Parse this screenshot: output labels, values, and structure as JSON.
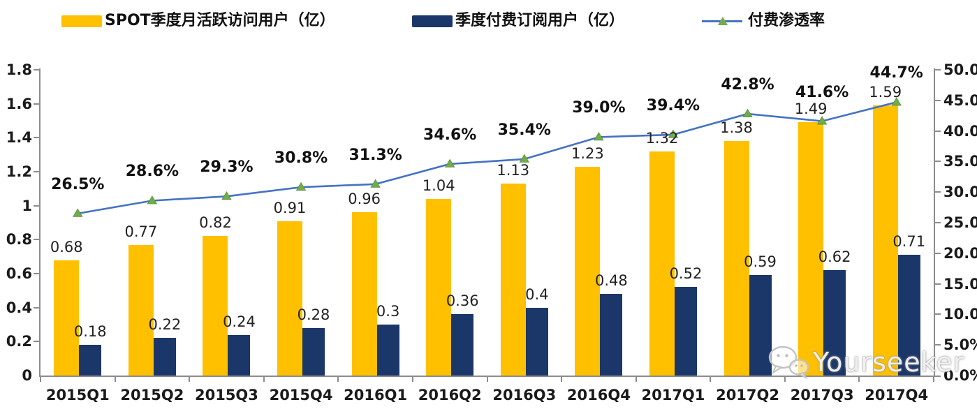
{
  "legend": [
    {
      "label": "SPOT季度月活跃访问用户（亿）",
      "swatch": "bar",
      "color": "#FFC000"
    },
    {
      "label": "季度付费订阅用户（亿）",
      "swatch": "bar",
      "color": "#1B3769"
    },
    {
      "label": "付费渗透率",
      "swatch": "line",
      "color": "#4472C4",
      "marker_color": "#70AD47"
    }
  ],
  "watermark": {
    "text": "Yourseeker",
    "icon": "wechat-icon"
  },
  "chart_data": {
    "type": "bar",
    "subtype": "combo dual-axis: grouped bars (left axis) + line with triangle markers (right axis)",
    "title": "",
    "categories": [
      "2015Q1",
      "2015Q2",
      "2015Q3",
      "2015Q4",
      "2016Q1",
      "2016Q2",
      "2016Q3",
      "2016Q4",
      "2017Q1",
      "2017Q2",
      "2017Q3",
      "2017Q4"
    ],
    "series": [
      {
        "name": "SPOT季度月活跃访问用户（亿）",
        "type": "bar",
        "axis": "left",
        "color": "#FFC000",
        "values": [
          0.68,
          0.77,
          0.82,
          0.91,
          0.96,
          1.04,
          1.13,
          1.23,
          1.32,
          1.38,
          1.49,
          1.59
        ],
        "labels": [
          "0.68",
          "0.77",
          "0.82",
          "0.91",
          "0.96",
          "1.04",
          "1.13",
          "1.23",
          "1.32",
          "1.38",
          "1.49",
          "1.59"
        ]
      },
      {
        "name": "季度付费订阅用户（亿）",
        "type": "bar",
        "axis": "left",
        "color": "#1B3769",
        "values": [
          0.18,
          0.22,
          0.24,
          0.28,
          0.3,
          0.36,
          0.4,
          0.48,
          0.52,
          0.59,
          0.62,
          0.71
        ],
        "labels": [
          "0.18",
          "0.22",
          "0.24",
          "0.28",
          "0.3",
          "0.36",
          "0.4",
          "0.48",
          "0.52",
          "0.59",
          "0.62",
          "0.71"
        ]
      },
      {
        "name": "付费渗透率",
        "type": "line",
        "axis": "right",
        "color": "#4472C4",
        "marker": "triangle",
        "marker_color": "#70AD47",
        "values": [
          26.5,
          28.6,
          29.3,
          30.8,
          31.3,
          34.6,
          35.4,
          39.0,
          39.4,
          42.8,
          41.6,
          44.7
        ],
        "labels": [
          "26.5%",
          "28.6%",
          "29.3%",
          "30.8%",
          "31.3%",
          "34.6%",
          "35.4%",
          "39.0%",
          "39.4%",
          "42.8%",
          "41.6%",
          "44.7%"
        ]
      }
    ],
    "left_axis": {
      "min": 0,
      "max": 1.8,
      "step": 0.2,
      "tick_labels": [
        "0",
        "0.2",
        "0.4",
        "0.6",
        "0.8",
        "1",
        "1.2",
        "1.4",
        "1.6",
        "1.8"
      ]
    },
    "right_axis": {
      "min": 0,
      "max": 50,
      "step": 5,
      "tick_labels": [
        "0.0%",
        "5.0%",
        "10.0%",
        "15.0%",
        "20.0%",
        "25.0%",
        "30.0%",
        "35.0%",
        "40.0%",
        "45.0%",
        "50.0%"
      ]
    },
    "grid": false,
    "legend_position": "top",
    "axis_color": "#8C8C8C",
    "label_color": "#1a1a1a"
  }
}
